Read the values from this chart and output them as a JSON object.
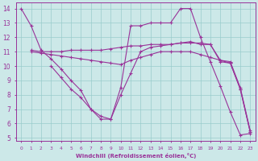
{
  "xlabel": "Windchill (Refroidissement éolien,°C)",
  "bg_color": "#cce8e8",
  "line_color": "#993399",
  "grid_color": "#99cccc",
  "xlim": [
    -0.5,
    23.5
  ],
  "ylim": [
    4.8,
    14.4
  ],
  "yticks": [
    5,
    6,
    7,
    8,
    9,
    10,
    11,
    12,
    13,
    14
  ],
  "xticks": [
    0,
    1,
    2,
    3,
    4,
    5,
    6,
    7,
    8,
    9,
    10,
    11,
    12,
    13,
    14,
    15,
    16,
    17,
    18,
    19,
    20,
    21,
    22,
    23
  ],
  "series": [
    {
      "x": [
        0,
        1,
        2,
        3,
        4,
        5,
        6,
        7,
        8,
        9,
        10,
        11,
        12,
        13,
        14,
        15,
        16,
        17,
        18,
        19,
        20,
        21,
        22,
        23
      ],
      "y": [
        14.0,
        12.8,
        11.1,
        10.5,
        9.8,
        9.0,
        8.3,
        7.0,
        6.3,
        6.3,
        8.5,
        12.8,
        12.8,
        13.0,
        13.0,
        13.0,
        14.0,
        14.0,
        12.0,
        10.3,
        8.6,
        6.8,
        5.2,
        5.3
      ]
    },
    {
      "x": [
        1,
        2,
        3,
        4,
        5,
        6,
        7,
        8,
        9,
        10,
        11,
        12,
        13,
        14,
        15,
        16,
        17,
        18,
        19,
        20,
        21,
        22,
        23
      ],
      "y": [
        11.1,
        11.0,
        11.0,
        11.0,
        11.1,
        11.1,
        11.1,
        11.1,
        11.2,
        11.3,
        11.4,
        11.4,
        11.5,
        11.5,
        11.5,
        11.6,
        11.6,
        11.6,
        11.5,
        10.4,
        10.3,
        8.5,
        5.5
      ]
    },
    {
      "x": [
        1,
        2,
        3,
        4,
        5,
        6,
        7,
        8,
        9,
        10,
        11,
        12,
        13,
        14,
        15,
        16,
        17,
        18,
        19,
        20,
        21,
        22,
        23
      ],
      "y": [
        11.0,
        10.9,
        10.8,
        10.7,
        10.6,
        10.5,
        10.4,
        10.3,
        10.2,
        10.1,
        10.4,
        10.6,
        10.8,
        11.0,
        11.0,
        11.0,
        11.0,
        10.8,
        10.6,
        10.4,
        10.2,
        8.4,
        5.4
      ]
    },
    {
      "x": [
        3,
        4,
        5,
        6,
        7,
        8,
        9,
        10,
        11,
        12,
        13,
        14,
        15,
        16,
        17,
        18,
        19,
        20,
        21,
        22,
        23
      ],
      "y": [
        10.0,
        9.2,
        8.4,
        7.8,
        7.0,
        6.5,
        6.3,
        8.0,
        9.5,
        11.0,
        11.3,
        11.4,
        11.5,
        11.6,
        11.7,
        11.5,
        11.5,
        10.3,
        10.2,
        8.4,
        5.4
      ]
    }
  ]
}
